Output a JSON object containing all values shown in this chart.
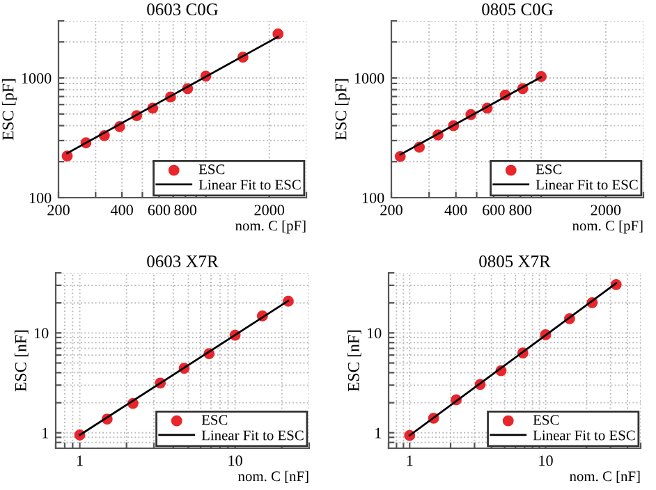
{
  "chart_data": [
    {
      "type": "scatter",
      "title": "0603 C0G",
      "xlabel": "nom. C [pF]",
      "ylabel": "ESC [pF]",
      "log": "xy",
      "grid": true,
      "legend": "bottom right",
      "xlim": [
        200,
        3000
      ],
      "ylim": [
        100,
        3000
      ],
      "xticks": [
        200,
        {
          "value": 300,
          "label": null
        },
        400,
        {
          "value": 500,
          "label": null
        },
        600,
        {
          "value": 700,
          "label": null
        },
        800,
        {
          "value": 900,
          "label": null
        },
        {
          "value": 1000,
          "label": null
        },
        2000,
        {
          "value": 3000,
          "label": null
        }
      ],
      "yticks": [
        100,
        {
          "value": 200,
          "label": null
        },
        {
          "value": 300,
          "label": null
        },
        {
          "value": 400,
          "label": null
        },
        {
          "value": 500,
          "label": null
        },
        {
          "value": 600,
          "label": null
        },
        {
          "value": 700,
          "label": null
        },
        {
          "value": 800,
          "label": null
        },
        {
          "value": 900,
          "label": null
        },
        1000,
        {
          "value": 2000,
          "label": null
        },
        {
          "value": 3000,
          "label": null
        }
      ],
      "series": [
        {
          "name": "ESC",
          "marker": "circle",
          "color": "#e8262b",
          "x": [
            220,
            270,
            330,
            390,
            470,
            560,
            680,
            820,
            1000,
            1500,
            2200
          ],
          "values": [
            223,
            287,
            330,
            392,
            485,
            560,
            693,
            815,
            1037,
            1494,
            2335
          ]
        },
        {
          "name": "Linear Fit to ESC",
          "type": "line",
          "color": "#000000",
          "x": [
            220,
            2200
          ],
          "values": [
            235,
            2210
          ]
        }
      ]
    },
    {
      "type": "scatter",
      "title": "0805 C0G",
      "xlabel": "nom. C [pF]",
      "ylabel": "ESC [pF]",
      "log": "xy",
      "grid": true,
      "legend": "bottom right",
      "xlim": [
        200,
        3000
      ],
      "ylim": [
        100,
        3000
      ],
      "xticks": [
        200,
        {
          "value": 300,
          "label": null
        },
        400,
        {
          "value": 500,
          "label": null
        },
        600,
        {
          "value": 700,
          "label": null
        },
        800,
        {
          "value": 900,
          "label": null
        },
        {
          "value": 1000,
          "label": null
        },
        2000,
        {
          "value": 3000,
          "label": null
        }
      ],
      "yticks": [
        100,
        {
          "value": 200,
          "label": null
        },
        {
          "value": 300,
          "label": null
        },
        {
          "value": 400,
          "label": null
        },
        {
          "value": 500,
          "label": null
        },
        {
          "value": 600,
          "label": null
        },
        {
          "value": 700,
          "label": null
        },
        {
          "value": 800,
          "label": null
        },
        {
          "value": 900,
          "label": null
        },
        1000,
        {
          "value": 2000,
          "label": null
        },
        {
          "value": 3000,
          "label": null
        }
      ],
      "series": [
        {
          "name": "ESC",
          "marker": "circle",
          "color": "#e8262b",
          "x": [
            220,
            270,
            330,
            390,
            470,
            560,
            680,
            820,
            1000
          ],
          "values": [
            221,
            264,
            334,
            399,
            494,
            560,
            719,
            815,
            1028
          ]
        },
        {
          "name": "Linear Fit to ESC",
          "type": "line",
          "color": "#000000",
          "x": [
            220,
            1000
          ],
          "values": [
            229,
            1018
          ]
        }
      ]
    },
    {
      "type": "scatter",
      "title": "0603 X7R",
      "xlabel": "nom. C [nF]",
      "ylabel": "ESC [nF]",
      "log": "xy",
      "grid": true,
      "legend": "bottom right",
      "xlim": [
        0.7,
        30
      ],
      "ylim": [
        0.7,
        40
      ],
      "xticks": [
        {
          "value": 0.7,
          "label": null
        },
        {
          "value": 0.8,
          "label": null
        },
        {
          "value": 0.9,
          "label": null
        },
        1,
        {
          "value": 2,
          "label": null
        },
        {
          "value": 3,
          "label": null
        },
        {
          "value": 4,
          "label": null
        },
        {
          "value": 5,
          "label": null
        },
        {
          "value": 6,
          "label": null
        },
        {
          "value": 7,
          "label": null
        },
        {
          "value": 8,
          "label": null
        },
        {
          "value": 9,
          "label": null
        },
        10,
        {
          "value": 20,
          "label": null
        },
        {
          "value": 30,
          "label": null
        }
      ],
      "yticks": [
        {
          "value": 0.7,
          "label": null
        },
        {
          "value": 0.8,
          "label": null
        },
        {
          "value": 0.9,
          "label": null
        },
        1,
        {
          "value": 2,
          "label": null
        },
        {
          "value": 3,
          "label": null
        },
        {
          "value": 4,
          "label": null
        },
        {
          "value": 5,
          "label": null
        },
        {
          "value": 6,
          "label": null
        },
        {
          "value": 7,
          "label": null
        },
        {
          "value": 8,
          "label": null
        },
        {
          "value": 9,
          "label": null
        },
        10,
        {
          "value": 20,
          "label": null
        },
        {
          "value": 30,
          "label": null
        },
        {
          "value": 40,
          "label": null
        }
      ],
      "series": [
        {
          "name": "ESC",
          "marker": "circle",
          "color": "#e8262b",
          "x": [
            1,
            1.5,
            2.2,
            3.3,
            4.7,
            6.8,
            10,
            15,
            22
          ],
          "values": [
            0.95,
            1.37,
            1.97,
            3.15,
            4.42,
            6.2,
            9.5,
            14.8,
            20.8
          ]
        },
        {
          "name": "Linear Fit to ESC",
          "type": "line",
          "color": "#000000",
          "x": [
            1,
            22
          ],
          "values": [
            0.95,
            21
          ]
        }
      ]
    },
    {
      "type": "scatter",
      "title": "0805 X7R",
      "xlabel": "nom. C [nF]",
      "ylabel": "ESC [nF]",
      "log": "xy",
      "grid": true,
      "legend": "bottom right",
      "xlim": [
        0.7,
        50
      ],
      "ylim": [
        0.7,
        40
      ],
      "xticks": [
        {
          "value": 0.7,
          "label": null
        },
        {
          "value": 0.8,
          "label": null
        },
        {
          "value": 0.9,
          "label": null
        },
        1,
        {
          "value": 2,
          "label": null
        },
        {
          "value": 3,
          "label": null
        },
        {
          "value": 4,
          "label": null
        },
        {
          "value": 5,
          "label": null
        },
        {
          "value": 6,
          "label": null
        },
        {
          "value": 7,
          "label": null
        },
        {
          "value": 8,
          "label": null
        },
        {
          "value": 9,
          "label": null
        },
        10,
        {
          "value": 20,
          "label": null
        },
        {
          "value": 30,
          "label": null
        },
        {
          "value": 40,
          "label": null
        },
        {
          "value": 50,
          "label": null
        }
      ],
      "yticks": [
        {
          "value": 0.7,
          "label": null
        },
        {
          "value": 0.8,
          "label": null
        },
        {
          "value": 0.9,
          "label": null
        },
        1,
        {
          "value": 2,
          "label": null
        },
        {
          "value": 3,
          "label": null
        },
        {
          "value": 4,
          "label": null
        },
        {
          "value": 5,
          "label": null
        },
        {
          "value": 6,
          "label": null
        },
        {
          "value": 7,
          "label": null
        },
        {
          "value": 8,
          "label": null
        },
        {
          "value": 9,
          "label": null
        },
        10,
        {
          "value": 20,
          "label": null
        },
        {
          "value": 30,
          "label": null
        },
        {
          "value": 40,
          "label": null
        }
      ],
      "series": [
        {
          "name": "ESC",
          "marker": "circle",
          "color": "#e8262b",
          "x": [
            1,
            1.5,
            2.2,
            3.3,
            4.7,
            6.8,
            10,
            15,
            22,
            33
          ],
          "values": [
            0.94,
            1.4,
            2.14,
            3.05,
            4.18,
            6.3,
            9.6,
            13.9,
            20.1,
            30.5
          ]
        },
        {
          "name": "Linear Fit to ESC",
          "type": "line",
          "color": "#000000",
          "x": [
            1,
            33
          ],
          "values": [
            0.94,
            31.5
          ]
        }
      ]
    }
  ]
}
